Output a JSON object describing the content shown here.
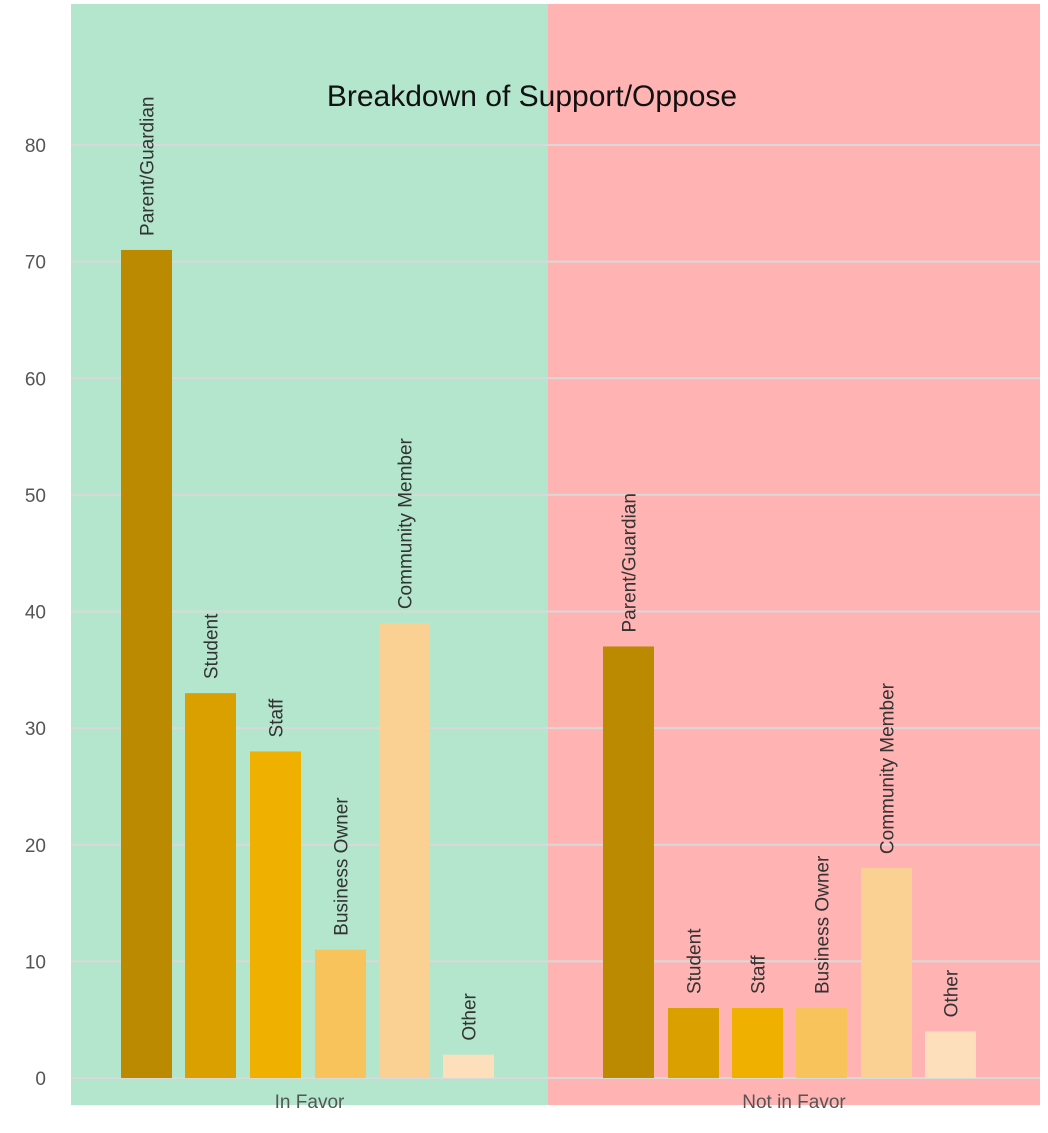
{
  "chart_data": {
    "type": "bar",
    "title": "Breakdown of Support/Oppose",
    "xlabel": "",
    "ylabel": "",
    "ylim": [
      0,
      90
    ],
    "yticks": [
      0,
      10,
      20,
      30,
      40,
      50,
      60,
      70,
      80
    ],
    "grid": true,
    "groups": [
      {
        "name": "In Favor",
        "background": "#b3e6cc",
        "bars": [
          {
            "category": "Parent/Guardian",
            "value": 71
          },
          {
            "category": "Student",
            "value": 33
          },
          {
            "category": "Staff",
            "value": 28
          },
          {
            "category": "Business Owner",
            "value": 11
          },
          {
            "category": "Community Member",
            "value": 39
          },
          {
            "category": "Other",
            "value": 2
          }
        ]
      },
      {
        "name": "Not in Favor",
        "background": "#ffb3b3",
        "bars": [
          {
            "category": "Parent/Guardian",
            "value": 37
          },
          {
            "category": "Student",
            "value": 6
          },
          {
            "category": "Staff",
            "value": 6
          },
          {
            "category": "Business Owner",
            "value": 6
          },
          {
            "category": "Community Member",
            "value": 18
          },
          {
            "category": "Other",
            "value": 4
          }
        ]
      }
    ],
    "category_colors": {
      "Parent/Guardian": "#bb8a00",
      "Student": "#d9a000",
      "Staff": "#efb000",
      "Business Owner": "#f7c35a",
      "Community Member": "#fbd193",
      "Other": "#fde0bb"
    },
    "grid_color": "#d9d9d9"
  }
}
